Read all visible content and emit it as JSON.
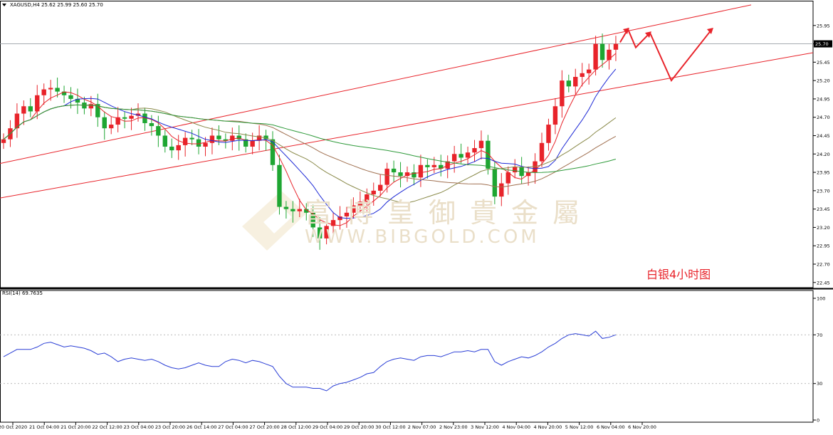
{
  "symbol_header": "XAGUSD,H4  25.62 25.99 25.60 25.70",
  "rsi_header": "RSI(14) 69.7635",
  "caption": "白银4小时图",
  "watermark": {
    "cn": "富博皇御貴金屬",
    "en": "WWW.BIBGOLD.COM"
  },
  "colors": {
    "bull": "#e8232a",
    "bear": "#1ea632",
    "channel": "#e8232a",
    "ma_fast": "#e8232a",
    "ma_blue": "#1f2bd6",
    "ma_olive": "#8a8a4a",
    "ma_brown": "#a07050",
    "ma_green": "#2e9a3a",
    "rsi": "#2b3fd6"
  },
  "chart_data": [
    {
      "type": "candlestick",
      "title": "XAGUSD,H4",
      "y_ticks": [
        "25.95",
        "25.70",
        "25.45",
        "25.20",
        "24.95",
        "24.70",
        "24.45",
        "24.20",
        "23.95",
        "23.70",
        "23.45",
        "23.20",
        "22.95",
        "22.70",
        "22.45"
      ],
      "ylim": [
        22.38,
        26.2
      ],
      "current_price": "25.70",
      "x_ticks": [
        "20 Oct 2020",
        "21 Oct 04:00",
        "21 Oct 20:00",
        "22 Oct 12:00",
        "23 Oct 04:00",
        "23 Oct 20:00",
        "26 Oct 14:00",
        "27 Oct 04:00",
        "27 Oct 20:00",
        "28 Oct 12:00",
        "29 Oct 04:00",
        "29 Oct 20:00",
        "30 Oct 12:00",
        "2 Nov 07:00",
        "2 Nov 23:00",
        "3 Nov 12:00",
        "4 Nov 04:00",
        "4 Nov 20:00",
        "5 Nov 12:00",
        "6 Nov 04:00",
        "6 Nov 20:00"
      ],
      "close": [
        24.4,
        24.55,
        24.75,
        24.85,
        24.78,
        25.0,
        25.08,
        25.1,
        25.05,
        25.0,
        24.95,
        24.9,
        24.82,
        24.88,
        24.7,
        24.55,
        24.6,
        24.7,
        24.68,
        24.72,
        24.75,
        24.62,
        24.58,
        24.45,
        24.3,
        24.25,
        24.32,
        24.42,
        24.4,
        24.3,
        24.35,
        24.45,
        24.4,
        24.38,
        24.45,
        24.4,
        24.3,
        24.38,
        24.45,
        24.4,
        24.05,
        23.48,
        23.45,
        23.42,
        23.45,
        23.4,
        23.2,
        23.05,
        23.22,
        23.3,
        23.35,
        23.4,
        23.5,
        23.55,
        23.65,
        23.7,
        23.78,
        24.0,
        23.95,
        23.9,
        23.95,
        23.88,
        24.05,
        24.02,
        24.05,
        24.0,
        24.1,
        24.2,
        24.15,
        24.22,
        24.28,
        24.38,
        24.0,
        23.62,
        23.8,
        23.95,
        24.02,
        23.9,
        23.95,
        24.1,
        24.35,
        24.6,
        24.85,
        25.2,
        25.12,
        25.25,
        25.3,
        25.35,
        25.7,
        25.48,
        25.62,
        25.7
      ],
      "ma_overlays": [
        "fast (red)",
        "blue",
        "olive",
        "brown",
        "green"
      ],
      "channel_lines": 2,
      "projection_arrows": true
    },
    {
      "type": "line",
      "title": "RSI(14)",
      "y_ticks": [
        "100",
        "70",
        "30",
        "0"
      ],
      "ylim": [
        0,
        100
      ],
      "reference_levels": [
        70,
        30
      ],
      "values": [
        52,
        55,
        58,
        58,
        58,
        60,
        63,
        64,
        62,
        60,
        61,
        60,
        59,
        57,
        54,
        55,
        52,
        48,
        50,
        51,
        50,
        49,
        50,
        48,
        45,
        43,
        42,
        43,
        45,
        47,
        45,
        44,
        44,
        48,
        50,
        49,
        47,
        49,
        48,
        46,
        44,
        36,
        30,
        27,
        27,
        27,
        26,
        26,
        24,
        28,
        30,
        31,
        33,
        35,
        38,
        39,
        44,
        48,
        50,
        51,
        50,
        49,
        52,
        53,
        53,
        52,
        54,
        56,
        56,
        57,
        56,
        58,
        58,
        48,
        45,
        48,
        50,
        52,
        51,
        53,
        56,
        60,
        63,
        67,
        70,
        71,
        70,
        69,
        73,
        67,
        68,
        70
      ]
    }
  ]
}
